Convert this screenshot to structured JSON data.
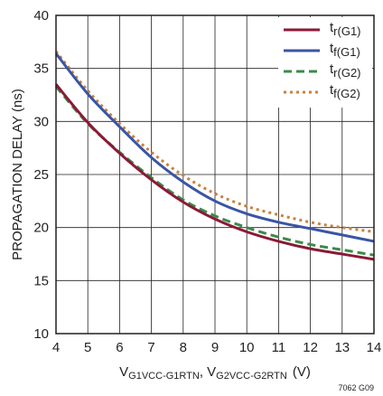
{
  "chart_data": {
    "type": "line",
    "xlabel": {
      "base": "V",
      "sub1": "G1VCC-G1RTN",
      "sep": ", V",
      "sub2": "G2VCC-G2RTN",
      "unit": "(V)"
    },
    "ylabel": "PROPAGATION DELAY (ns)",
    "xlim": [
      4,
      14
    ],
    "ylim": [
      10,
      40
    ],
    "xticks": [
      4,
      5,
      6,
      7,
      8,
      9,
      10,
      11,
      12,
      13,
      14
    ],
    "yticks": [
      10,
      15,
      20,
      25,
      30,
      35,
      40
    ],
    "grid": true,
    "legend_position": "top-right",
    "figure_id": "7062 G09",
    "series": [
      {
        "name": "tr(G1)",
        "label_main": "t",
        "label_sub": "r(G1)",
        "color": "#8b1a35",
        "dash": "solid",
        "x": [
          4,
          5,
          6,
          7,
          8,
          9,
          10,
          11,
          12,
          13,
          14
        ],
        "y": [
          33.5,
          29.9,
          27.0,
          24.5,
          22.4,
          20.8,
          19.6,
          18.7,
          18.0,
          17.5,
          17.0
        ]
      },
      {
        "name": "tf(G1)",
        "label_main": "t",
        "label_sub": "f(G1)",
        "color": "#3a55a4",
        "dash": "solid",
        "x": [
          4,
          5,
          6,
          7,
          8,
          9,
          10,
          11,
          12,
          13,
          14
        ],
        "y": [
          36.4,
          32.6,
          29.5,
          26.6,
          24.3,
          22.5,
          21.3,
          20.5,
          19.9,
          19.3,
          18.7
        ]
      },
      {
        "name": "tr(G2)",
        "label_main": "t",
        "label_sub": "r(G2)",
        "color": "#3c8a4a",
        "dash": "dashed",
        "x": [
          4,
          5,
          6,
          7,
          8,
          9,
          10,
          11,
          12,
          13,
          14
        ],
        "y": [
          33.3,
          29.8,
          27.1,
          24.7,
          22.6,
          21.1,
          20.0,
          19.1,
          18.4,
          17.9,
          17.4
        ]
      },
      {
        "name": "tf(G2)",
        "label_main": "t",
        "label_sub": "f(G2)",
        "color": "#c7823f",
        "dash": "dotted",
        "x": [
          4,
          5,
          6,
          7,
          8,
          9,
          10,
          11,
          12,
          13,
          14
        ],
        "y": [
          36.6,
          32.9,
          29.8,
          27.1,
          24.9,
          23.2,
          22.0,
          21.2,
          20.5,
          20.0,
          19.6
        ]
      }
    ]
  }
}
